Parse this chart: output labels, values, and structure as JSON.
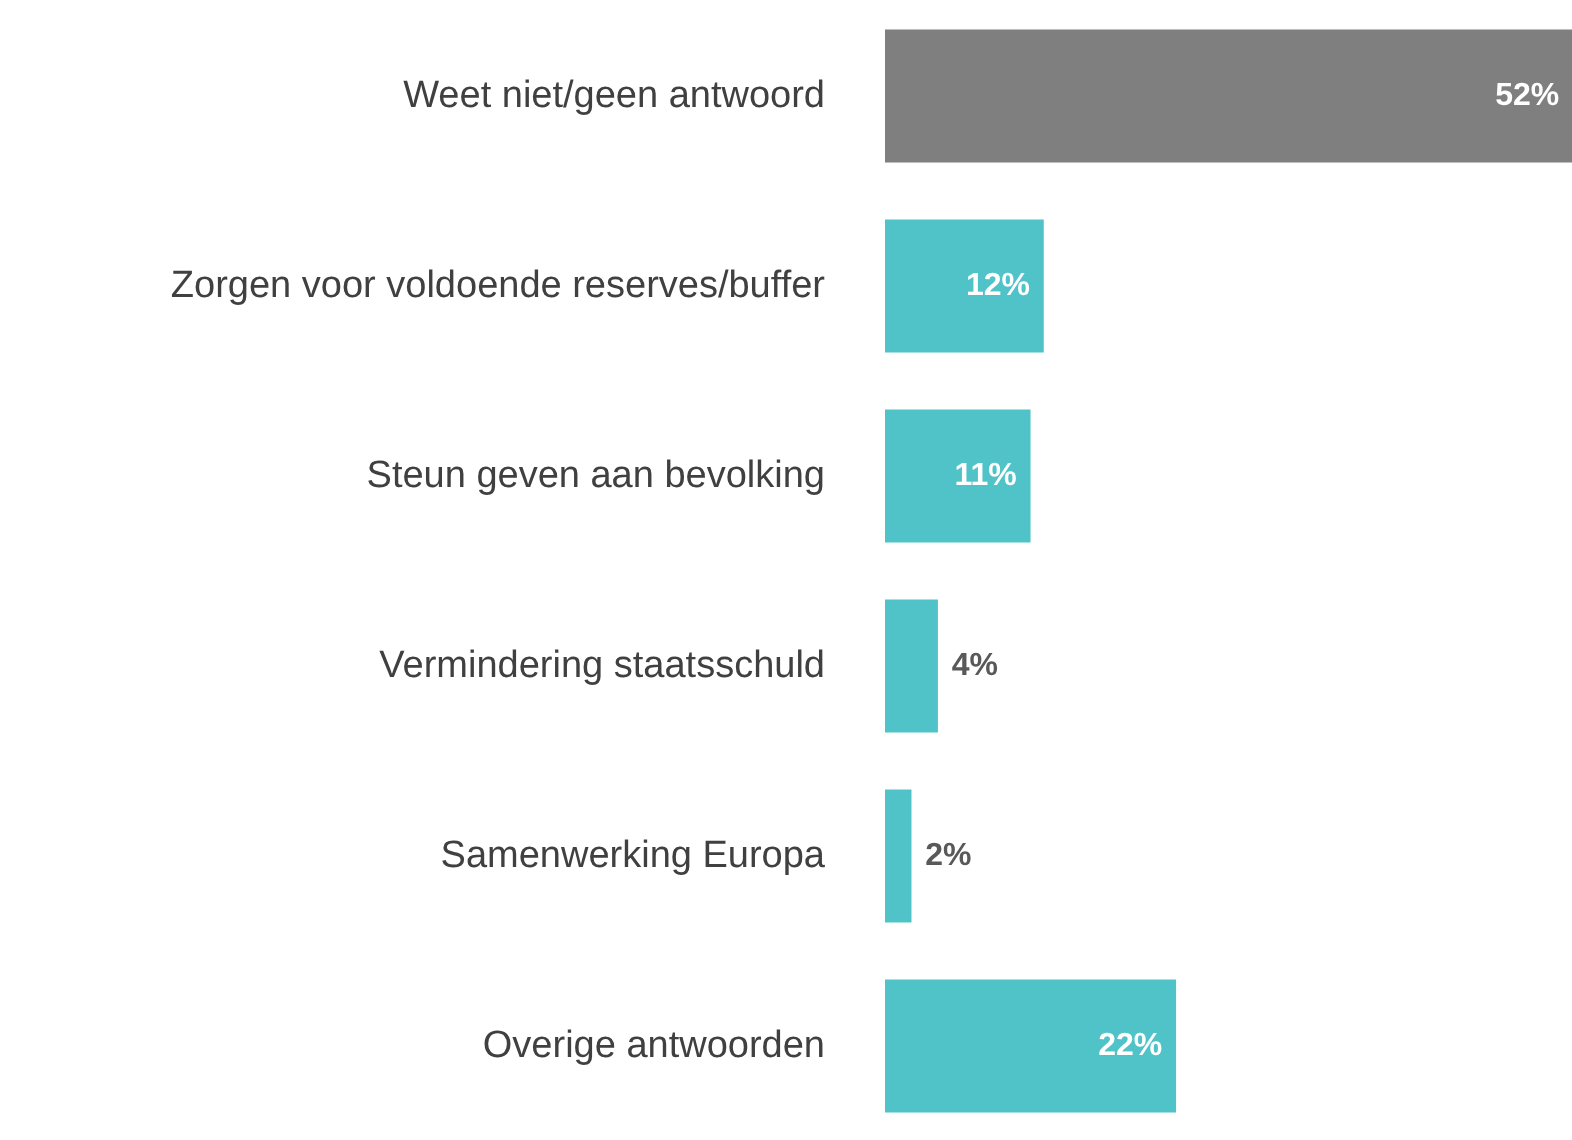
{
  "chart_data": {
    "type": "bar",
    "orientation": "horizontal",
    "categories": [
      "Weet niet/geen antwoord",
      "Zorgen voor voldoende reserves/buffer",
      "Steun geven aan bevolking",
      "Vermindering staatsschuld",
      "Samenwerking Europa",
      "Overige antwoorden"
    ],
    "values": [
      52,
      12,
      11,
      4,
      2,
      22
    ],
    "colors": [
      "#7f7f7f",
      "#4fc3c8",
      "#4fc3c8",
      "#4fc3c8",
      "#4fc3c8",
      "#4fc3c8"
    ],
    "value_labels": [
      "52%",
      "12%",
      "11%",
      "4%",
      "2%",
      "22%"
    ],
    "grid": false
  }
}
